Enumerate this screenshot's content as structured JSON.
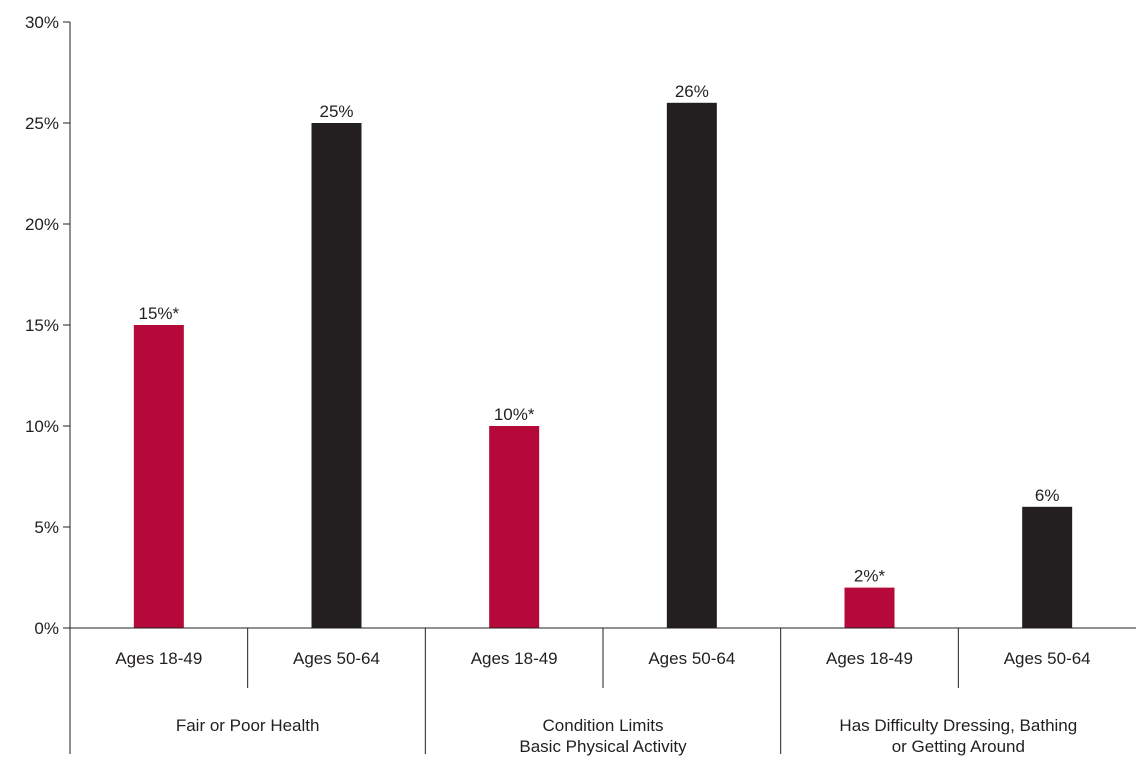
{
  "chart_data": {
    "type": "bar",
    "ylim": [
      0,
      30
    ],
    "yticks": [
      0,
      5,
      10,
      15,
      20,
      25,
      30
    ],
    "ytick_labels": [
      "0%",
      "5%",
      "10%",
      "15%",
      "20%",
      "25%",
      "30%"
    ],
    "groups": [
      {
        "label_lines": [
          "Fair or Poor Health"
        ],
        "bars": [
          {
            "category": "Ages 18-49",
            "value": 15,
            "label": "15%*",
            "color": "#b5093a"
          },
          {
            "category": "Ages 50-64",
            "value": 25,
            "label": "25%",
            "color": "#231f20"
          }
        ]
      },
      {
        "label_lines": [
          "Condition Limits",
          "Basic Physical Activity"
        ],
        "bars": [
          {
            "category": "Ages 18-49",
            "value": 10,
            "label": "10%*",
            "color": "#b5093a"
          },
          {
            "category": "Ages 50-64",
            "value": 26,
            "label": "26%",
            "color": "#231f20"
          }
        ]
      },
      {
        "label_lines": [
          "Has Difficulty Dressing, Bathing",
          "or Getting Around"
        ],
        "bars": [
          {
            "category": "Ages 18-49",
            "value": 2,
            "label": "2%*",
            "color": "#b5093a"
          },
          {
            "category": "Ages 50-64",
            "value": 6,
            "label": "6%",
            "color": "#231f20"
          }
        ]
      }
    ],
    "grid": false,
    "colors": {
      "ages_18_49": "#b5093a",
      "ages_50_64": "#231f20"
    }
  }
}
